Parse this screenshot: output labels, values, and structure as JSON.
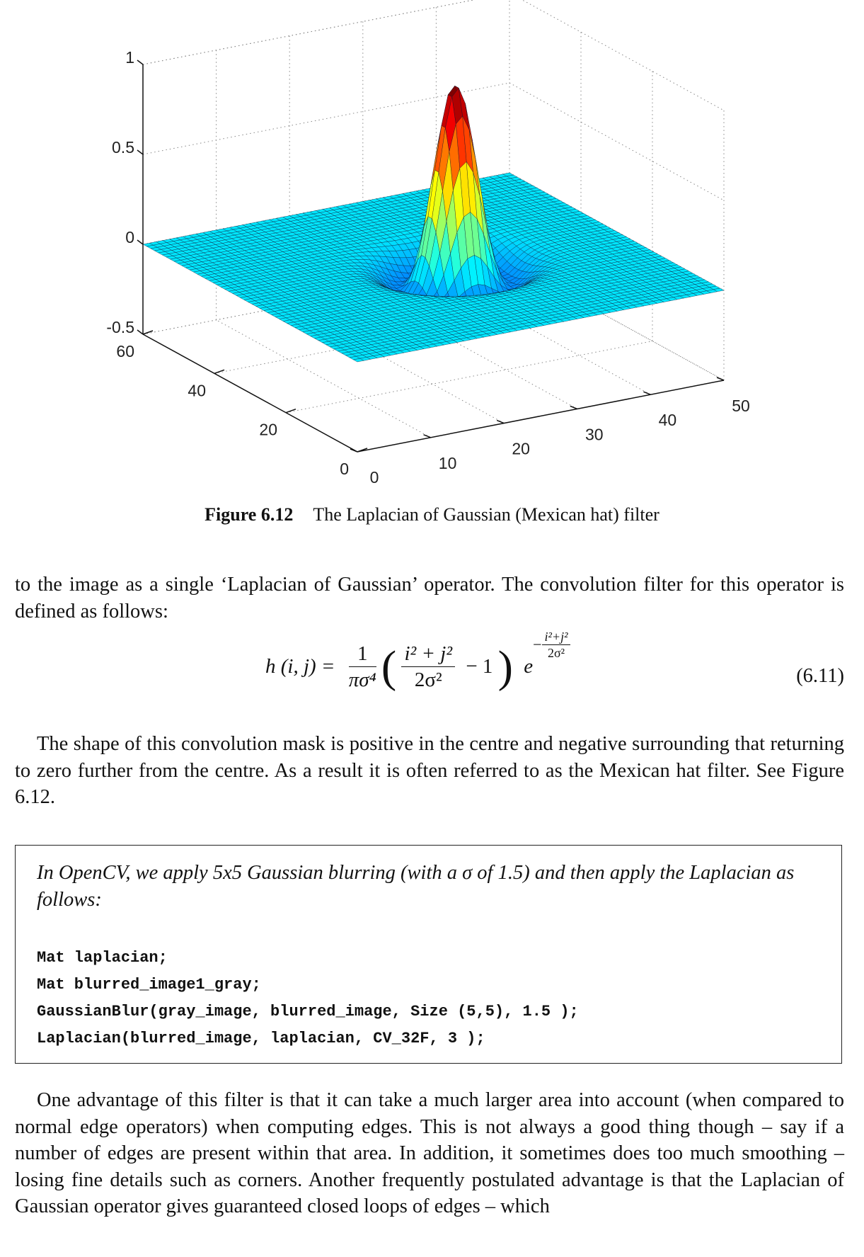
{
  "chart_data": {
    "type": "surface",
    "title": "",
    "xlabel": "",
    "ylabel": "",
    "zlabel": "",
    "x_ticks": [
      "0",
      "10",
      "20",
      "30",
      "40",
      "50"
    ],
    "y_ticks": [
      "0",
      "20",
      "40",
      "60"
    ],
    "z_ticks": [
      "1",
      "0.5",
      "0",
      "-0.5"
    ],
    "xlim": [
      0,
      50
    ],
    "ylim": [
      0,
      60
    ],
    "zlim": [
      -0.5,
      1
    ],
    "grid": true,
    "colormap": "jet",
    "surface": {
      "function": "laplacian-of-gaussian-negated",
      "centre": [
        28,
        30
      ],
      "peak": 1,
      "trough": -0.4
    }
  },
  "figure": {
    "label": "Figure 6.12",
    "caption": "The Laplacian of Gaussian (Mexican hat) filter"
  },
  "paragraph_1": "to the image as a single ‘Laplacian of Gaussian’ operator. The convolution filter for this operator is defined as follows:",
  "equation": {
    "lhs": "h (i, j) =",
    "frac1_num": "1",
    "frac1_den": "πσ⁴",
    "frac2_num": "i² + j²",
    "frac2_den": "2σ²",
    "minus_one": "− 1",
    "e": "e",
    "exp_sign": "−",
    "exp_num": "i²+j²",
    "exp_den": "2σ²",
    "number": "(6.11)"
  },
  "paragraph_2": "The shape of this convolution mask is positive in the centre and negative surrounding that returning to zero further from the centre. As a result it is often referred to as the Mexican hat filter. See Figure 6.12.",
  "box": {
    "text": "In OpenCV, we apply 5x5 Gaussian blurring (with a σ of 1.5) and then apply the Laplacian as follows:",
    "code": [
      "Mat laplacian;",
      "Mat blurred_image1_gray;",
      "GaussianBlur(gray_image, blurred_image, Size (5,5), 1.5 );",
      "Laplacian(blurred_image, laplacian, CV_32F, 3 );"
    ]
  },
  "paragraph_3": "One advantage of this filter is that it can take a much larger area into account (when compared to normal edge operators) when computing edges. This is not always a good thing though – say if a number of edges are present within that area. In addition, it sometimes does too much smoothing – losing fine details such as corners. Another frequently postulated advantage is that the Laplacian of Gaussian operator gives guaranteed closed loops of edges – which"
}
